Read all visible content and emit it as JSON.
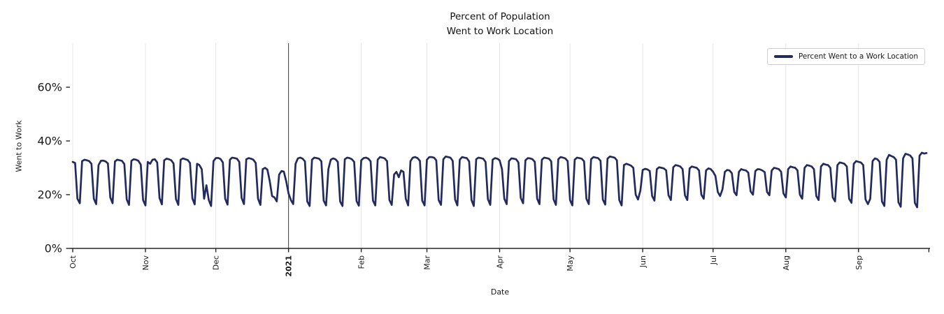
{
  "figure": {
    "title_line1": "Percent of Population",
    "title_line2": "Went to Work Location",
    "xlabel": "Date",
    "ylabel": "Went to Work",
    "legend_label": "Percent Went to a Work Location"
  },
  "style": {
    "line_color": "#232a5e",
    "vline_color": "#404040",
    "grid_color": "#e4e4e4",
    "spine_color": "#262626",
    "legend_border": "#cccccc"
  },
  "chart_data": {
    "type": "line",
    "title": "Percent of Population\nWent to Work Location",
    "xlabel": "Date",
    "ylabel": "Went to Work",
    "legend_position": "upper right",
    "grid": "vertical month gridlines",
    "ylim": [
      0,
      76
    ],
    "yticks": [
      {
        "value": 0,
        "label": "0%"
      },
      {
        "value": 20,
        "label": "20%"
      },
      {
        "value": 40,
        "label": "40%"
      },
      {
        "value": 60,
        "label": "60%"
      }
    ],
    "xticks": [
      {
        "day": 0,
        "label": "Oct",
        "bold": false
      },
      {
        "day": 31,
        "label": "Nov",
        "bold": false
      },
      {
        "day": 61,
        "label": "Dec",
        "bold": false
      },
      {
        "day": 92,
        "label": "2021",
        "bold": true
      },
      {
        "day": 123,
        "label": "Feb",
        "bold": false
      },
      {
        "day": 151,
        "label": "Mar",
        "bold": false
      },
      {
        "day": 182,
        "label": "Apr",
        "bold": false
      },
      {
        "day": 212,
        "label": "May",
        "bold": false
      },
      {
        "day": 243,
        "label": "Jun",
        "bold": false
      },
      {
        "day": 273,
        "label": "Jul",
        "bold": false
      },
      {
        "day": 304,
        "label": "Aug",
        "bold": false
      },
      {
        "day": 335,
        "label": "Sep",
        "bold": false
      },
      {
        "day": 365,
        "label": "",
        "bold": false
      }
    ],
    "vline": {
      "day": 92,
      "at_label": "2021"
    },
    "series": [
      {
        "name": "Percent Went to a Work Location",
        "color": "#232a5e",
        "start_date": "2020-10-01",
        "frequency": "daily",
        "unit": "percent",
        "values": [
          32.2,
          31.8,
          18.5,
          16.8,
          32.5,
          33,
          32.8,
          32.5,
          31.5,
          18.5,
          16.5,
          31,
          32.6,
          32.7,
          32.4,
          31.6,
          19,
          16.8,
          32.4,
          33,
          32.8,
          32.6,
          31.4,
          18.2,
          16.2,
          32.6,
          33.2,
          33,
          32.6,
          31.2,
          18,
          16,
          32.2,
          31.5,
          33,
          33.2,
          32,
          18.8,
          16.4,
          32.8,
          33.4,
          33.2,
          32.8,
          31.6,
          18.4,
          16.2,
          33,
          33.5,
          33.2,
          32.9,
          31.8,
          18.6,
          16.4,
          31.5,
          31,
          29.5,
          18.5,
          23.5,
          18,
          15.8,
          32.5,
          33.6,
          33.7,
          33.3,
          32,
          18.5,
          16.3,
          33,
          33.8,
          33.6,
          33.4,
          32.2,
          18.8,
          16.5,
          33.2,
          33.6,
          33.4,
          33,
          31.8,
          18.5,
          16.2,
          29.5,
          30,
          29.3,
          25,
          19.5,
          19,
          17.5,
          27.5,
          28.8,
          28.6,
          25,
          20.5,
          18,
          16.5,
          31.5,
          33.5,
          33.8,
          33.4,
          32.4,
          17.5,
          15.8,
          33,
          33.8,
          33.6,
          33.4,
          32.4,
          17.8,
          16,
          29.5,
          33,
          33.5,
          33.2,
          32.2,
          17.5,
          15.8,
          33.2,
          33.8,
          33.6,
          33.2,
          32.2,
          17.6,
          15.9,
          32.8,
          33.6,
          33.8,
          33.4,
          32.4,
          17.8,
          16,
          33,
          34,
          33.8,
          33.5,
          32.5,
          18,
          16.2,
          27.5,
          28.5,
          26.5,
          29,
          28.5,
          18.5,
          16,
          32.5,
          33.8,
          34,
          33.6,
          32.6,
          17.8,
          16,
          33,
          34,
          34,
          33.8,
          32.8,
          18,
          16.2,
          33.2,
          34.2,
          34,
          33.8,
          32.6,
          18.2,
          16,
          33,
          34,
          33.8,
          33.6,
          32.4,
          18,
          15.8,
          33.2,
          33.8,
          33.6,
          33.4,
          32.2,
          18.4,
          16.2,
          33,
          33.6,
          33.4,
          32.8,
          29.5,
          18.5,
          16.5,
          32.5,
          33.5,
          33.4,
          33.2,
          32,
          18.8,
          16.8,
          32.8,
          33.6,
          33.5,
          33.2,
          32.2,
          18.5,
          16.5,
          33,
          33.8,
          33.6,
          33.4,
          32.4,
          18.2,
          16.2,
          33.2,
          34,
          33.8,
          33.5,
          32.5,
          18,
          16,
          33,
          33.8,
          33.6,
          33.4,
          32.4,
          18.5,
          16.5,
          33.2,
          34,
          33.8,
          33.6,
          32.6,
          18.2,
          16.3,
          33.4,
          34.2,
          34,
          33.8,
          32.8,
          18,
          16,
          31,
          31.5,
          31.2,
          30.8,
          30,
          20,
          18.2,
          21.5,
          29.2,
          29.6,
          29.4,
          28.8,
          19.5,
          17.8,
          29.5,
          30.2,
          30,
          29.8,
          29,
          19.8,
          18,
          30.2,
          31,
          30.8,
          30.5,
          29.5,
          19.8,
          18,
          29.8,
          30.5,
          30.2,
          30,
          29,
          20,
          18.5,
          29,
          29.8,
          29.5,
          28.5,
          27,
          21,
          19.5,
          22,
          28.5,
          29.2,
          29,
          28,
          21,
          19.8,
          28.5,
          29.5,
          29.2,
          29,
          28.2,
          21.2,
          20,
          28.8,
          29.5,
          29.4,
          29,
          28.4,
          21,
          19.8,
          29,
          30,
          29.8,
          29.5,
          28.5,
          20.5,
          19,
          29.5,
          30.5,
          30.2,
          30,
          29,
          20,
          18.5,
          30,
          31,
          30.8,
          30.5,
          29.5,
          19.5,
          18,
          30.5,
          31.5,
          31.2,
          31,
          30,
          19,
          17.5,
          31,
          32,
          31.8,
          31.5,
          30.5,
          18.5,
          17,
          31.5,
          32.5,
          32.2,
          32,
          31,
          18.2,
          16.5,
          18.5,
          32.5,
          33.5,
          33.2,
          32.2,
          17.5,
          15.8,
          33,
          34.8,
          34.4,
          34,
          33,
          17.2,
          15.5,
          33.5,
          35.2,
          35,
          34.6,
          33.5,
          17,
          15.3,
          34.5,
          35.6,
          35.3,
          35.5
        ]
      }
    ]
  }
}
